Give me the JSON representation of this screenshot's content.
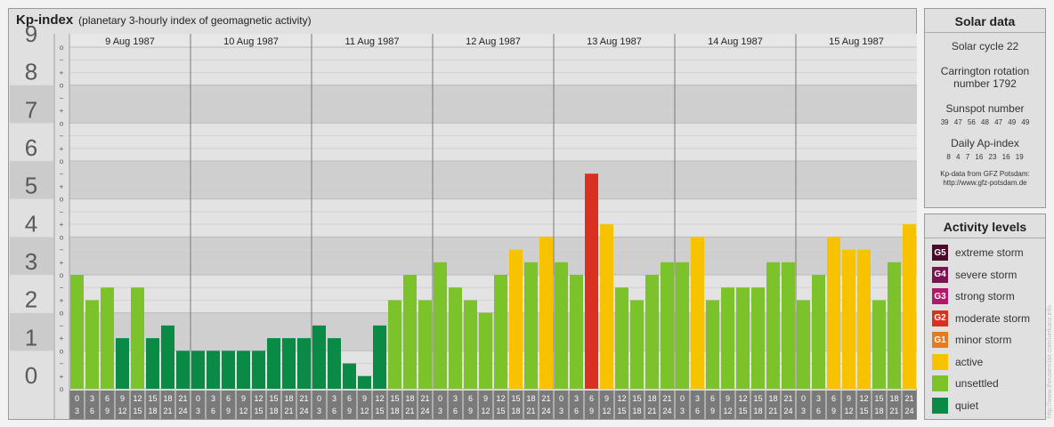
{
  "header": {
    "title": "Kp-index",
    "subtitle": "(planetary 3-hourly index of geomagnetic activity)"
  },
  "chart_data": {
    "type": "bar",
    "ylim": [
      0,
      9
    ],
    "y_ticks": [
      "0",
      "1",
      "2",
      "3",
      "4",
      "5",
      "6",
      "7",
      "8",
      "9"
    ],
    "minor_ticks": [
      "o",
      "+",
      "−"
    ],
    "days": [
      "9 Aug 1987",
      "10 Aug 1987",
      "11 Aug 1987",
      "12 Aug 1987",
      "13 Aug 1987",
      "14 Aug 1987",
      "15 Aug 1987"
    ],
    "interval_starts": [
      "0",
      "3",
      "6",
      "9",
      "12",
      "15",
      "18",
      "21"
    ],
    "interval_ends": [
      "3",
      "6",
      "9",
      "12",
      "15",
      "18",
      "21",
      "24"
    ],
    "values": [
      3,
      2.333,
      2.667,
      1.333,
      2.667,
      1.333,
      1.667,
      1,
      1,
      1,
      1,
      1,
      1,
      1.333,
      1.333,
      1.333,
      1.667,
      1.333,
      0.667,
      0.333,
      1.667,
      2.333,
      3,
      2.333,
      3.333,
      2.667,
      2.333,
      2,
      3,
      3.667,
      3.333,
      4,
      3.333,
      3,
      5.667,
      4.333,
      2.667,
      2.333,
      3,
      3.333,
      3.333,
      4,
      2.333,
      2.667,
      2.667,
      2.667,
      3.333,
      3.333,
      2.333,
      3,
      4,
      3.667,
      3.667,
      2.333,
      3.333,
      4.333
    ],
    "thresholds": {
      "quiet_below": 2,
      "unsettled_below": 3.5,
      "active_below": 5,
      "g1_below": 6
    }
  },
  "solar_data": {
    "title": "Solar data",
    "solar_cycle": "Solar cycle 22",
    "carrington_1": "Carrington rotation",
    "carrington_2": "number 1792",
    "sunspot_label": "Sunspot number",
    "sunspot_values": "39 47 56 48 47 49 49",
    "ap_label": "Daily Ap-index",
    "ap_values": "8 4 7 16 23 16 19",
    "credit_1": "Kp-data from GFZ Potsdam:",
    "credit_2": "http://www.gfz-potsdam.de"
  },
  "activity_levels": {
    "title": "Activity levels",
    "items": [
      {
        "code": "G5",
        "label": "extreme storm",
        "color": "#4a0a2a"
      },
      {
        "code": "G4",
        "label": "severe storm",
        "color": "#7a1550"
      },
      {
        "code": "G3",
        "label": "strong storm",
        "color": "#b5176a"
      },
      {
        "code": "G2",
        "label": "moderate storm",
        "color": "#d93020"
      },
      {
        "code": "G1",
        "label": "minor storm",
        "color": "#e57a1e"
      },
      {
        "code": "",
        "label": "active",
        "color": "#f7c300"
      },
      {
        "code": "",
        "label": "unsettled",
        "color": "#7cc22a"
      },
      {
        "code": "",
        "label": "quiet",
        "color": "#0a8a45"
      }
    ]
  },
  "watermark": "http://www.theusericlair.com/uerkanz.info"
}
